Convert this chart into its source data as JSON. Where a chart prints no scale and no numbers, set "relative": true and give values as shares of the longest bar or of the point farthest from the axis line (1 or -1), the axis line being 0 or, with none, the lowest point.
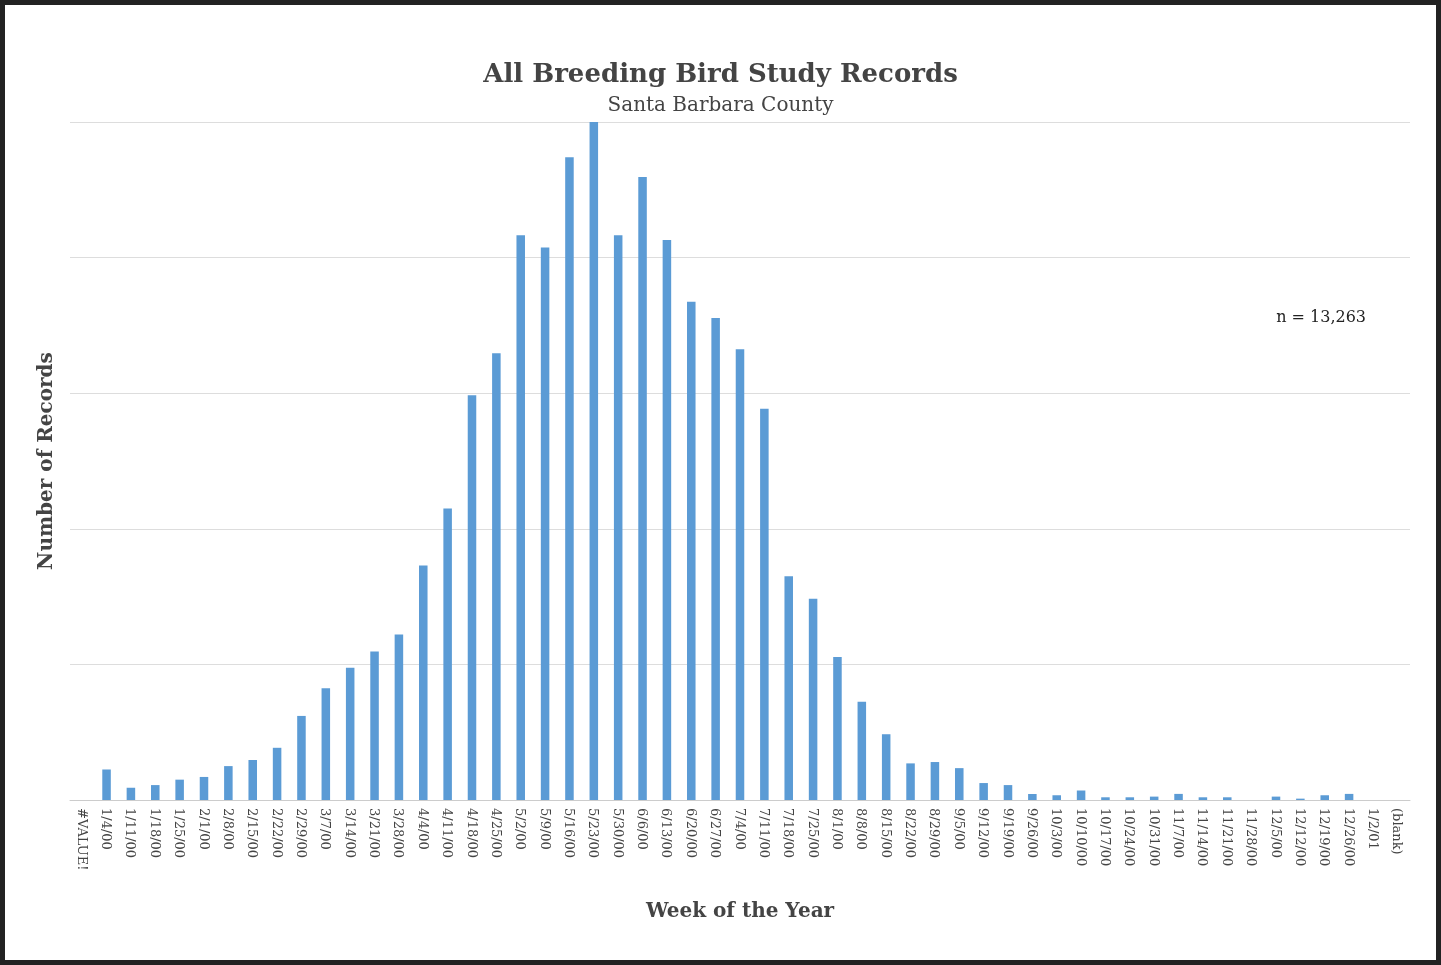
{
  "chart_data": {
    "type": "bar",
    "title": "All Breeding Bird Study Records",
    "subtitle": "Santa Barbara County",
    "xlabel": "Week of the Year",
    "ylabel": "Number of Records",
    "annotations": [
      "n = 13,263"
    ],
    "relative": true,
    "grid": "y",
    "color": "#5b9bd5",
    "categories": [
      "#VALUE!",
      "1/4/00",
      "1/11/00",
      "1/18/00",
      "1/25/00",
      "2/1/00",
      "2/8/00",
      "2/15/00",
      "2/22/00",
      "2/29/00",
      "3/7/00",
      "3/14/00",
      "3/21/00",
      "3/28/00",
      "4/4/00",
      "4/11/00",
      "4/18/00",
      "4/25/00",
      "5/2/00",
      "5/9/00",
      "5/16/00",
      "5/23/00",
      "5/30/00",
      "6/6/00",
      "6/13/00",
      "6/20/00",
      "6/27/00",
      "7/4/00",
      "7/11/00",
      "7/18/00",
      "7/25/00",
      "8/1/00",
      "8/8/00",
      "8/15/00",
      "8/22/00",
      "8/29/00",
      "9/5/00",
      "9/12/00",
      "9/19/00",
      "9/26/00",
      "10/3/00",
      "10/10/00",
      "10/17/00",
      "10/24/00",
      "10/31/00",
      "11/7/00",
      "11/14/00",
      "11/21/00",
      "11/28/00",
      "12/5/00",
      "12/12/00",
      "12/19/00",
      "12/26/00",
      "1/2/01",
      "(blank)"
    ],
    "values": [
      0,
      0.045,
      0.018,
      0.022,
      0.03,
      0.034,
      0.05,
      0.059,
      0.077,
      0.124,
      0.165,
      0.195,
      0.219,
      0.244,
      0.346,
      0.43,
      0.597,
      0.659,
      0.833,
      0.815,
      0.948,
      1,
      0.833,
      0.919,
      0.826,
      0.735,
      0.711,
      0.665,
      0.577,
      0.33,
      0.297,
      0.211,
      0.145,
      0.097,
      0.054,
      0.056,
      0.047,
      0.025,
      0.022,
      0.009,
      0.007,
      0.014,
      0.004,
      0.004,
      0.005,
      0.009,
      0.004,
      0.004,
      0,
      0.005,
      0.002,
      0.007,
      0.009,
      0,
      0
    ]
  }
}
